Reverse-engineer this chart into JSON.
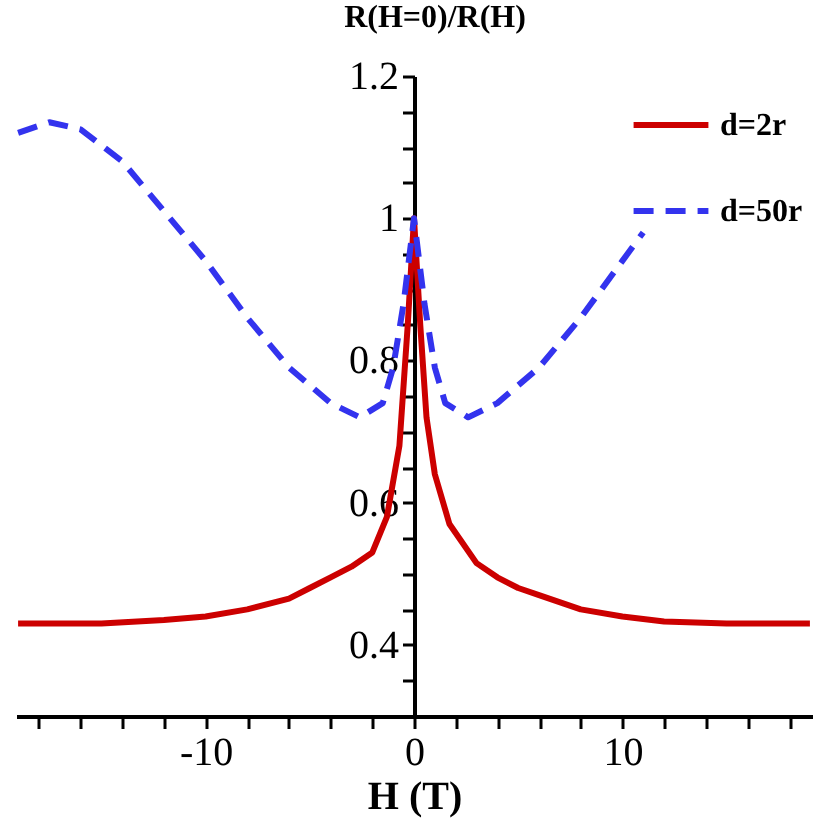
{
  "chart_data": {
    "type": "line",
    "xlabel": "H (T)",
    "ylabel": "R(H=0)/R(H)",
    "xlim": [
      -19.1,
      19.1
    ],
    "ylim": [
      0.3,
      1.2
    ],
    "xticks": [
      {
        "value": -18,
        "label": null
      },
      {
        "value": -16,
        "label": null
      },
      {
        "value": -14,
        "label": null
      },
      {
        "value": -12,
        "label": null
      },
      -10,
      {
        "value": -8,
        "label": null
      },
      {
        "value": -6,
        "label": null
      },
      {
        "value": -4,
        "label": null
      },
      {
        "value": -2,
        "label": null
      },
      0,
      {
        "value": 2,
        "label": null
      },
      {
        "value": 4,
        "label": null
      },
      {
        "value": 6,
        "label": null
      },
      {
        "value": 8,
        "label": null
      },
      10,
      {
        "value": 12,
        "label": null
      },
      {
        "value": 14,
        "label": null
      },
      {
        "value": 16,
        "label": null
      },
      {
        "value": 18,
        "label": null
      }
    ],
    "yticks": [
      {
        "value": 0.35,
        "label": null
      },
      0.4,
      {
        "value": 0.45,
        "label": null
      },
      {
        "value": 0.5,
        "label": null
      },
      {
        "value": 0.55,
        "label": null
      },
      0.6,
      {
        "value": 0.65,
        "label": null
      },
      {
        "value": 0.7,
        "label": null
      },
      {
        "value": 0.75,
        "label": null
      },
      0.8,
      {
        "value": 0.85,
        "label": null
      },
      {
        "value": 0.9,
        "label": null
      },
      {
        "value": 0.95,
        "label": null
      },
      1,
      {
        "value": 1.05,
        "label": null
      },
      {
        "value": 1.1,
        "label": null
      },
      {
        "value": 1.15,
        "label": null
      },
      1.2
    ],
    "grid": false,
    "legend": "top right",
    "marker": "none",
    "series": [
      {
        "name": "d=2r",
        "color": "#cc0000",
        "line_style": "solid",
        "x": [
          -19,
          -15,
          -12,
          -10,
          -8,
          -6,
          -5,
          -4,
          -3,
          -2,
          -1.3,
          -0.7,
          -0.3,
          0,
          0.3,
          0.6,
          1,
          1.7,
          3,
          4,
          5,
          6,
          8,
          10,
          12,
          15,
          19
        ],
        "values": [
          0.43,
          0.43,
          0.435,
          0.44,
          0.45,
          0.465,
          0.48,
          0.495,
          0.51,
          0.53,
          0.58,
          0.68,
          0.85,
          1.0,
          0.85,
          0.72,
          0.64,
          0.57,
          0.515,
          0.495,
          0.48,
          0.47,
          0.45,
          0.44,
          0.433,
          0.43,
          0.43
        ]
      },
      {
        "name": "d=50r",
        "color": "#3333ee",
        "line_style": "dashed",
        "x": [
          -19,
          -17.5,
          -16,
          -14,
          -12,
          -10,
          -8,
          -6,
          -4,
          -2.6,
          -1.5,
          -1,
          -0.5,
          0,
          0.5,
          1,
          1.5,
          2.6,
          4,
          6,
          8,
          10,
          11
        ],
        "values": [
          1.12,
          1.135,
          1.125,
          1.08,
          1.01,
          0.94,
          0.86,
          0.79,
          0.74,
          0.72,
          0.74,
          0.79,
          0.88,
          1.0,
          0.88,
          0.79,
          0.74,
          0.72,
          0.74,
          0.79,
          0.86,
          0.94,
          0.98
        ]
      }
    ]
  }
}
